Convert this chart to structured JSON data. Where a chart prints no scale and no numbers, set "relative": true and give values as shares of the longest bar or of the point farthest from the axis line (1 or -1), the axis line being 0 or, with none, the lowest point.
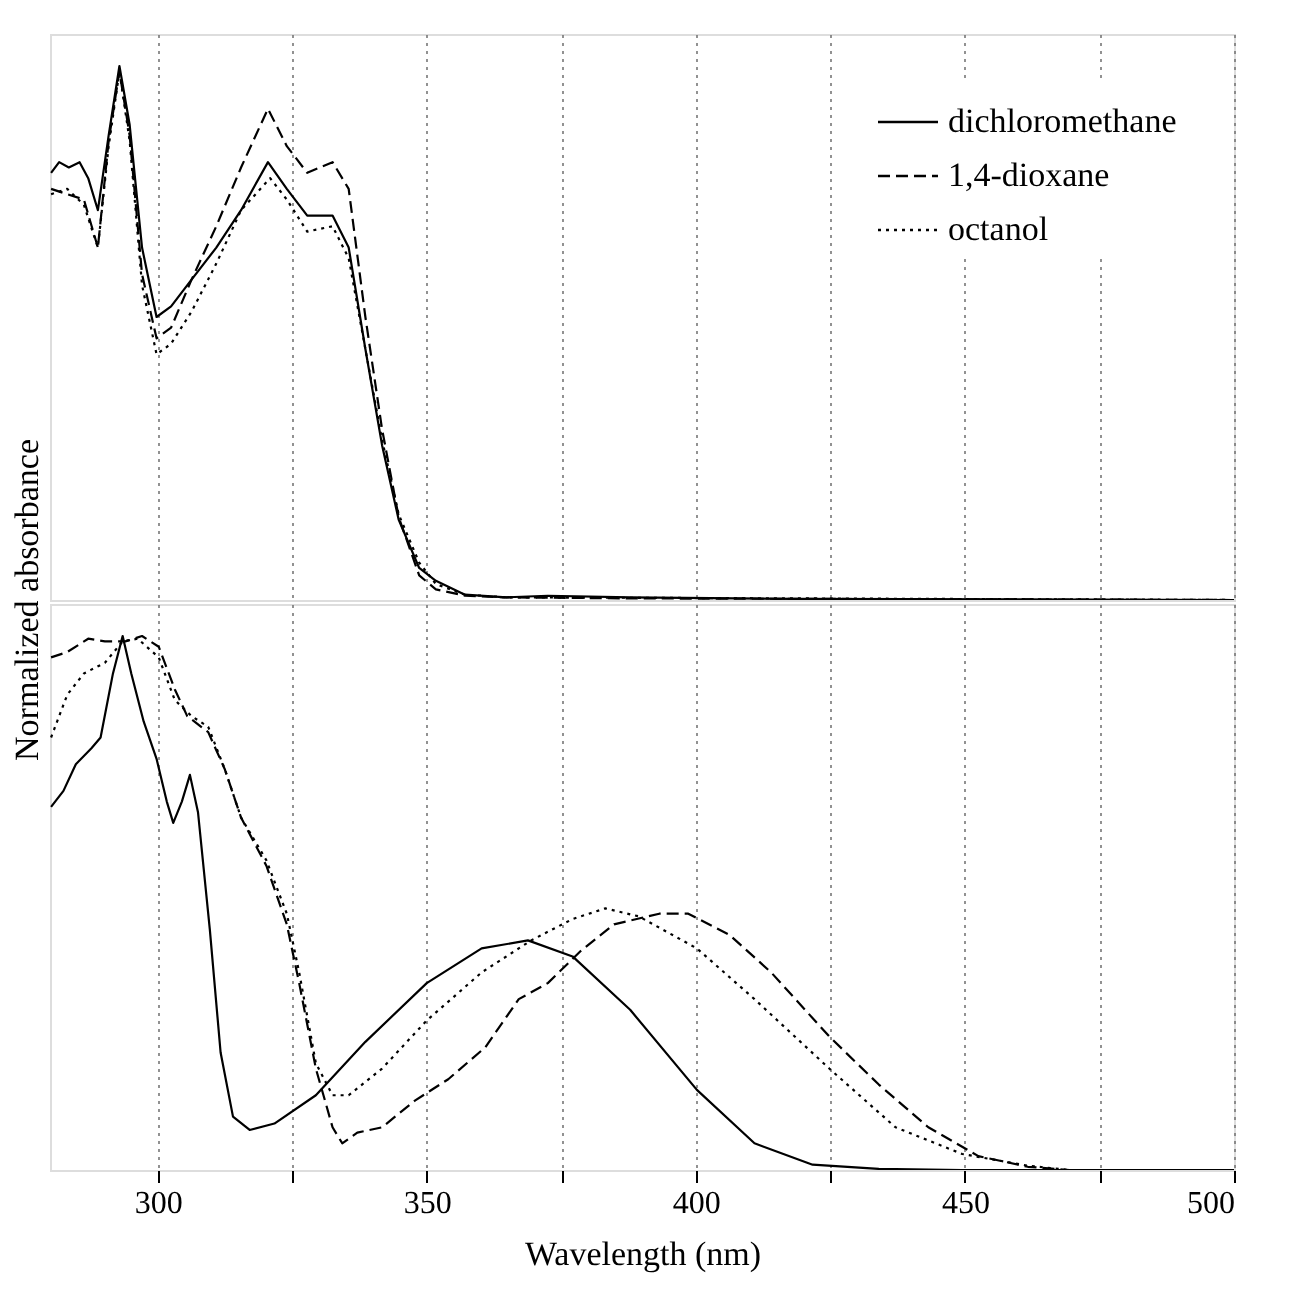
{
  "chart_data": [
    {
      "type": "line",
      "relative": true,
      "ylabel": "Normalized absorbance",
      "legend": "top right",
      "grid": "x",
      "tick_labels": false,
      "xlim": [
        280,
        500
      ],
      "xticks": [
        300,
        {
          "value": 325,
          "label": null
        },
        350,
        {
          "value": 375,
          "label": null
        },
        400,
        {
          "value": 425,
          "label": null
        },
        450,
        {
          "value": 475,
          "label": null
        },
        500
      ],
      "series": [
        {
          "name": "dichloromethane",
          "color": "#000000",
          "line_style": "solid",
          "x": [
            280.2,
            281.7,
            283.5,
            285.5,
            287.1,
            288.9,
            290.9,
            292.9,
            294.8,
            297.1,
            299.8,
            302.5,
            306.3,
            310.9,
            315.5,
            320.5,
            324,
            327.8,
            332.5,
            335.5,
            338.6,
            341.7,
            344.8,
            348.6,
            351.7,
            357.1,
            364.8,
            372.5,
            387.8,
            418.6,
            500
          ],
          "values": [
            0.8,
            0.82,
            0.81,
            0.82,
            0.79,
            0.73,
            0.87,
            1.0,
            0.89,
            0.66,
            0.53,
            0.55,
            0.6,
            0.66,
            0.73,
            0.82,
            0.77,
            0.72,
            0.72,
            0.66,
            0.47,
            0.29,
            0.15,
            0.06,
            0.036,
            0.01,
            0.005,
            0.008,
            0.005,
            0.002,
            0
          ]
        },
        {
          "name": "1,4-dioxane",
          "color": "#000000",
          "line_style": "dashed",
          "x": [
            280.2,
            283.2,
            286.3,
            288.9,
            290.9,
            292.9,
            294.8,
            297.1,
            299.8,
            302.5,
            306.3,
            310.9,
            315.5,
            320.5,
            324,
            327.8,
            332.5,
            335.5,
            338.6,
            341.7,
            344.8,
            348.6,
            351.7,
            357.1,
            364.8,
            387.8,
            500
          ],
          "values": [
            0.77,
            0.76,
            0.75,
            0.66,
            0.86,
            0.99,
            0.87,
            0.61,
            0.49,
            0.51,
            0.6,
            0.7,
            0.81,
            0.92,
            0.85,
            0.8,
            0.82,
            0.77,
            0.53,
            0.32,
            0.155,
            0.046,
            0.02,
            0.008,
            0.005,
            0.003,
            0
          ]
        },
        {
          "name": "octanol",
          "color": "#000000",
          "line_style": "dotted",
          "x": [
            280.2,
            283.2,
            286.3,
            288.9,
            290.9,
            292.9,
            294.8,
            297.1,
            299.8,
            302.5,
            306.3,
            310.9,
            315.5,
            320.9,
            324,
            327.8,
            332.5,
            335.5,
            338.6,
            341.7,
            344.8,
            348.6,
            351.7,
            357.1,
            364.8,
            500
          ],
          "values": [
            0.76,
            0.77,
            0.74,
            0.66,
            0.85,
            0.99,
            0.86,
            0.59,
            0.46,
            0.48,
            0.54,
            0.63,
            0.73,
            0.79,
            0.75,
            0.69,
            0.7,
            0.64,
            0.47,
            0.3,
            0.16,
            0.07,
            0.03,
            0.01,
            0.005,
            0
          ]
        }
      ]
    },
    {
      "type": "line",
      "relative": true,
      "xlabel": "Wavelength (nm)",
      "grid": "x",
      "tick_labels": "x",
      "xlim": [
        280,
        500
      ],
      "xticks": [
        300,
        {
          "value": 325,
          "label": null
        },
        350,
        {
          "value": 375,
          "label": null
        },
        400,
        {
          "value": 425,
          "label": null
        },
        450,
        {
          "value": 475,
          "label": null
        },
        500
      ],
      "series": [
        {
          "color": "#000000",
          "line_style": "solid",
          "x": [
            280.2,
            282.5,
            284.8,
            287.7,
            289.4,
            291.7,
            293.5,
            295.1,
            297.4,
            299.8,
            301.7,
            302.9,
            304.5,
            306,
            307.5,
            309.7,
            311.7,
            314,
            317.1,
            321.7,
            329.4,
            338.6,
            350,
            360.2,
            368.8,
            377.1,
            387.8,
            400.2,
            410.9,
            421.7,
            434,
            449.5,
            500
          ],
          "values": [
            0.68,
            0.71,
            0.76,
            0.79,
            0.81,
            0.93,
            1.0,
            0.93,
            0.84,
            0.77,
            0.69,
            0.65,
            0.69,
            0.74,
            0.67,
            0.45,
            0.22,
            0.1,
            0.075,
            0.087,
            0.14,
            0.24,
            0.35,
            0.415,
            0.43,
            0.4,
            0.3,
            0.15,
            0.05,
            0.01,
            0.002,
            0,
            0
          ]
        },
        {
          "color": "#000000",
          "line_style": "dashed",
          "x": [
            280.2,
            283.2,
            287.1,
            290.2,
            294,
            297.1,
            300.2,
            303.2,
            305.5,
            309.4,
            312.5,
            315.5,
            320.2,
            324,
            326.3,
            329.4,
            332.5,
            334.3,
            337.1,
            341.7,
            347.8,
            354,
            360.9,
            367.1,
            372.5,
            378.6,
            384.8,
            393.2,
            398.6,
            406.3,
            414,
            424.8,
            434,
            443.2,
            452.5,
            461.7,
            469.4,
            500
          ],
          "values": [
            0.96,
            0.97,
            0.995,
            0.99,
            0.99,
            1.0,
            0.98,
            0.9,
            0.85,
            0.82,
            0.75,
            0.66,
            0.57,
            0.46,
            0.35,
            0.19,
            0.08,
            0.05,
            0.07,
            0.08,
            0.13,
            0.17,
            0.23,
            0.32,
            0.35,
            0.41,
            0.46,
            0.48,
            0.48,
            0.44,
            0.37,
            0.25,
            0.16,
            0.08,
            0.026,
            0.006,
            0,
            0
          ]
        },
        {
          "color": "#000000",
          "line_style": "dotted",
          "x": [
            280.2,
            283.2,
            286.3,
            290.2,
            293.5,
            296.3,
            300.2,
            303.2,
            306.3,
            309.4,
            312.5,
            315.5,
            320.2,
            324,
            326.3,
            329.4,
            332.5,
            335.5,
            341.7,
            350,
            360.2,
            369.4,
            377.1,
            383.2,
            389.4,
            400.2,
            410.9,
            424.8,
            437.1,
            449.5,
            461.7,
            469.4,
            500
          ],
          "values": [
            0.81,
            0.89,
            0.93,
            0.95,
            0.99,
            0.995,
            0.96,
            0.88,
            0.85,
            0.83,
            0.75,
            0.66,
            0.58,
            0.48,
            0.37,
            0.2,
            0.14,
            0.14,
            0.19,
            0.28,
            0.37,
            0.43,
            0.47,
            0.49,
            0.475,
            0.415,
            0.32,
            0.19,
            0.08,
            0.03,
            0.008,
            0,
            0
          ]
        }
      ]
    }
  ]
}
